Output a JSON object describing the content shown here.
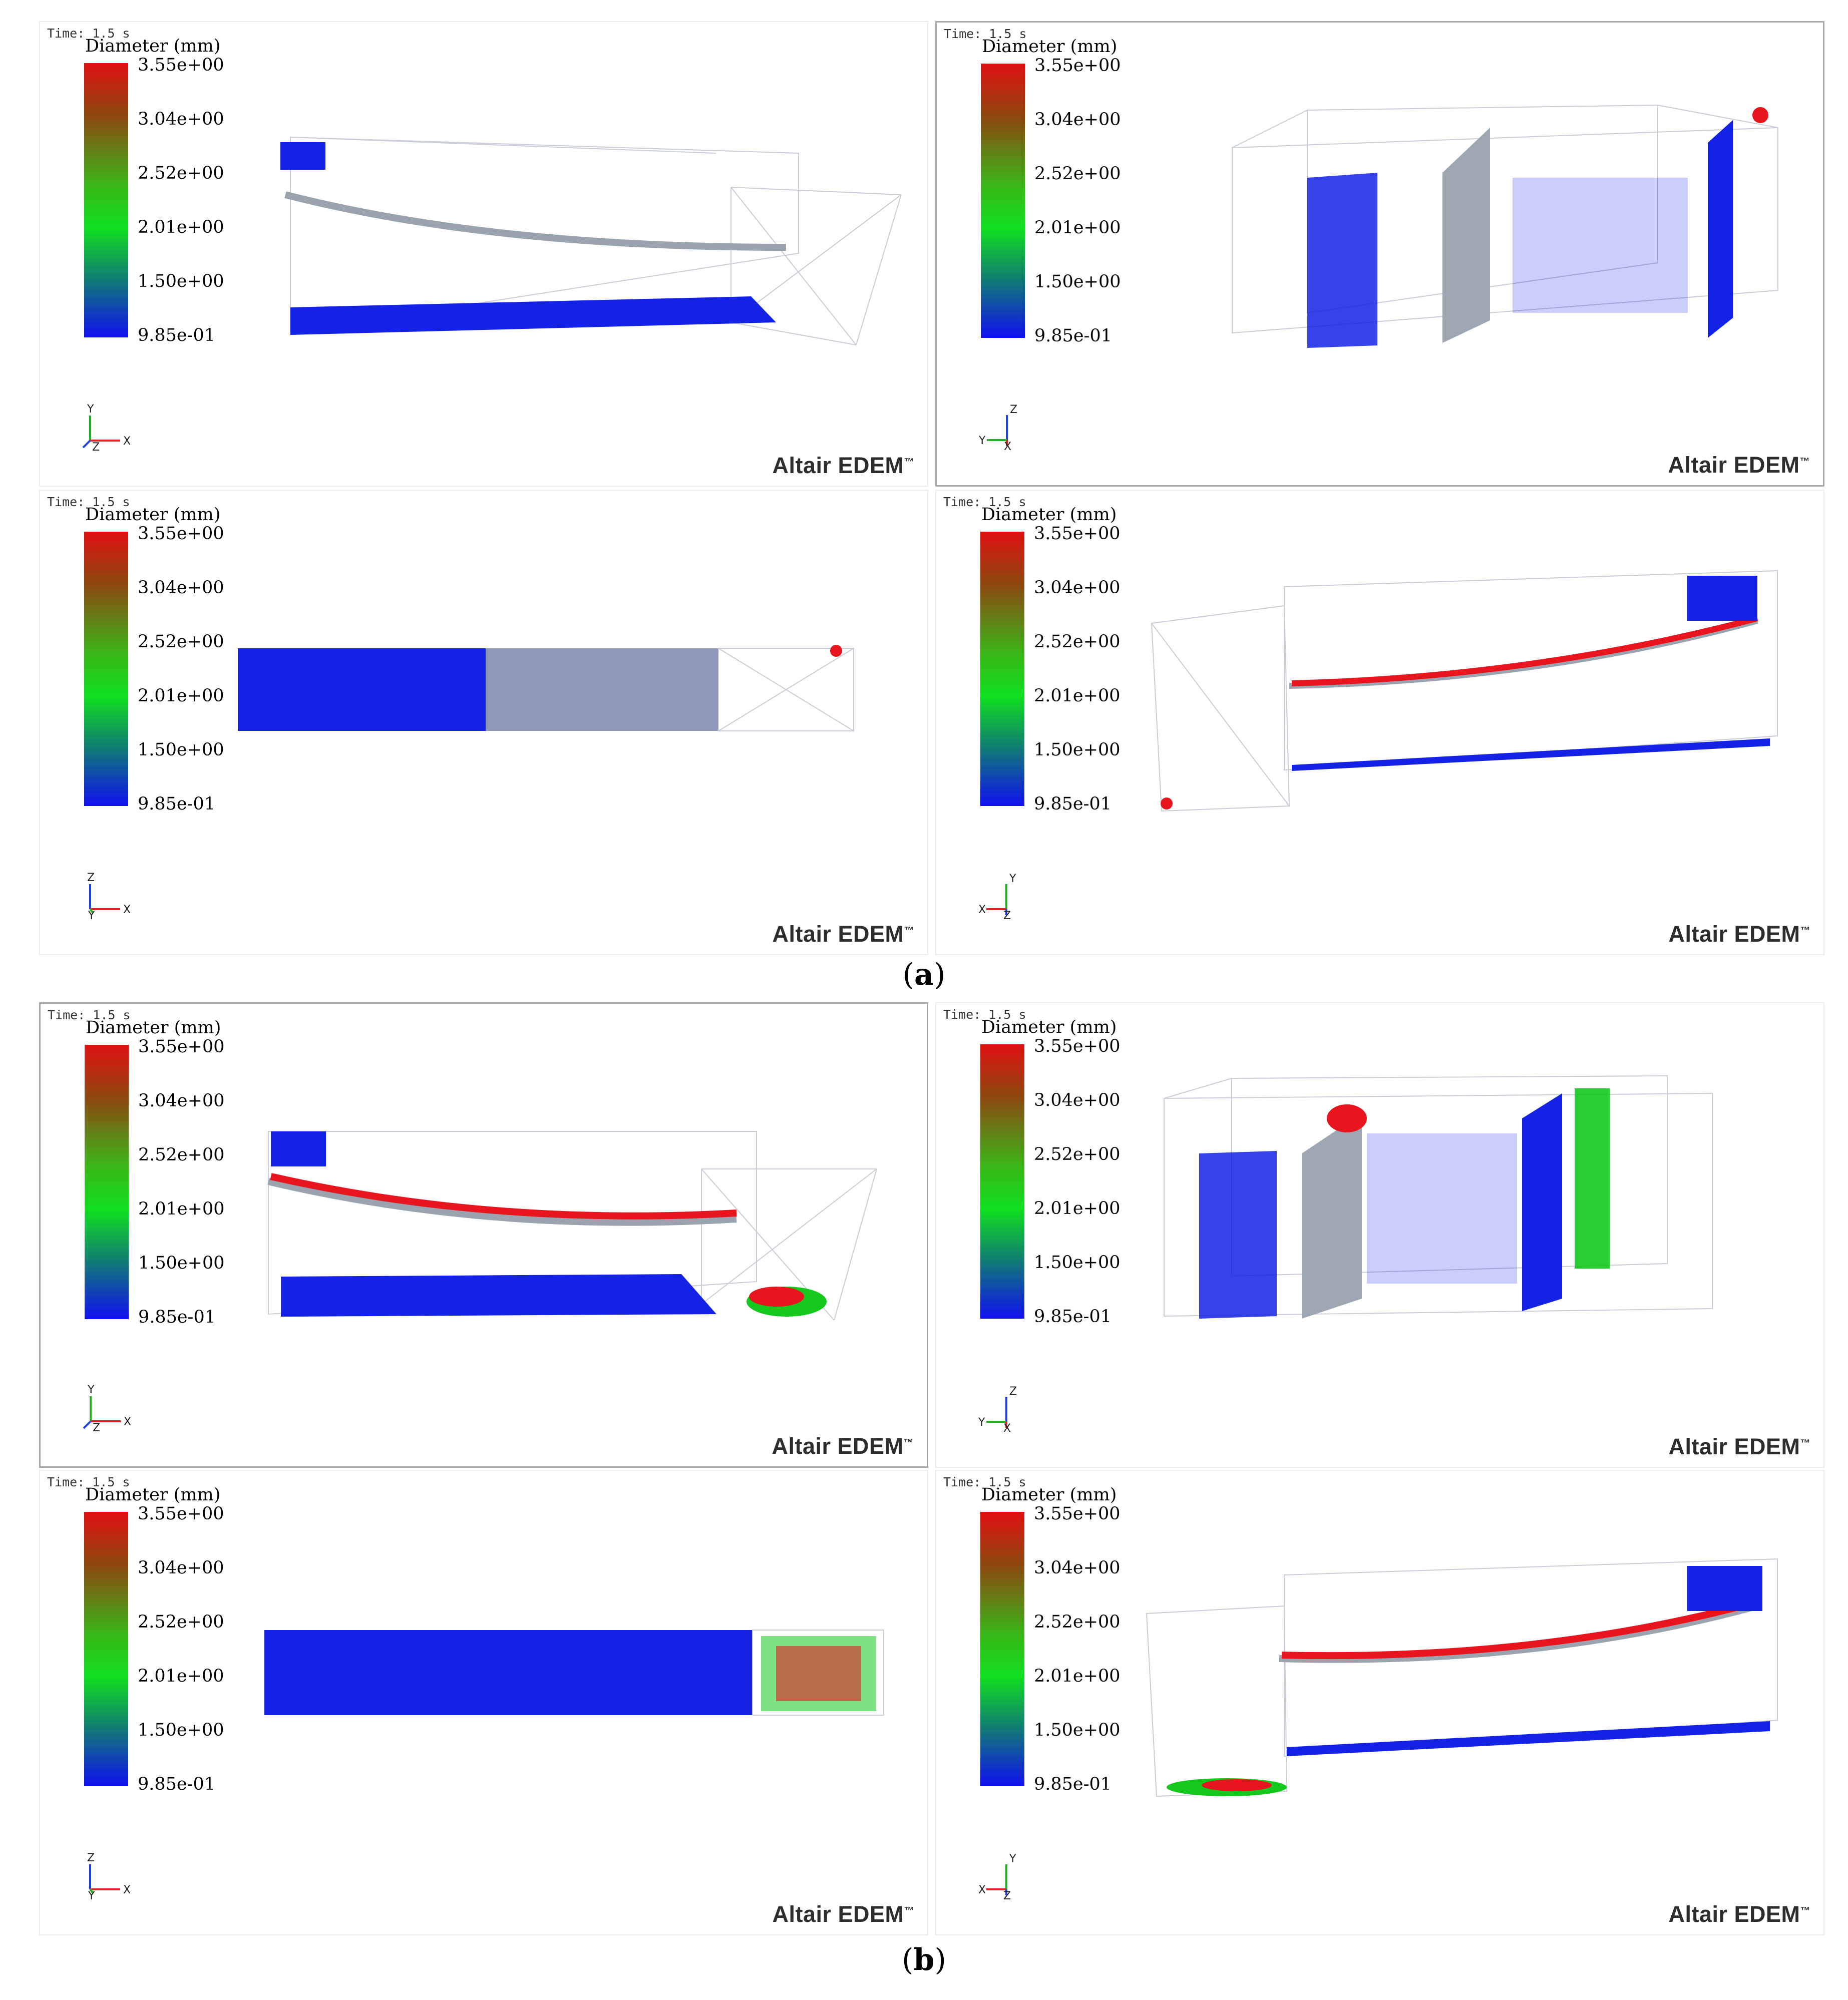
{
  "legend": {
    "time": "Time: 1.5 s",
    "title": "Diameter (mm)",
    "ticks": [
      "3.55e+00",
      "3.04e+00",
      "2.52e+00",
      "2.01e+00",
      "1.50e+00",
      "9.85e-01"
    ]
  },
  "brand": {
    "name": "Altair EDEM",
    "mark": "™"
  },
  "colors": {
    "particle_large": "#e8141e",
    "particle_medium": "#14c81e",
    "particle_small": "#1422e6",
    "screen_mesh": "#9ea6b2"
  },
  "captions": {
    "a": "a",
    "b": "b"
  },
  "panels": [
    {
      "id": "a-front",
      "axes": [
        "Y",
        "X",
        "Z"
      ]
    },
    {
      "id": "a-side",
      "axes": [
        "Z",
        "Y",
        "X"
      ]
    },
    {
      "id": "a-top",
      "axes": [
        "Z",
        "X",
        "Y"
      ]
    },
    {
      "id": "a-back",
      "axes": [
        "Y",
        "X",
        "Z"
      ]
    },
    {
      "id": "b-front",
      "axes": [
        "Y",
        "X",
        "Z"
      ]
    },
    {
      "id": "b-side",
      "axes": [
        "Z",
        "Y",
        "X"
      ]
    },
    {
      "id": "b-top",
      "axes": [
        "Z",
        "X",
        "Y"
      ]
    },
    {
      "id": "b-back",
      "axes": [
        "Y",
        "X",
        "Z"
      ]
    }
  ]
}
